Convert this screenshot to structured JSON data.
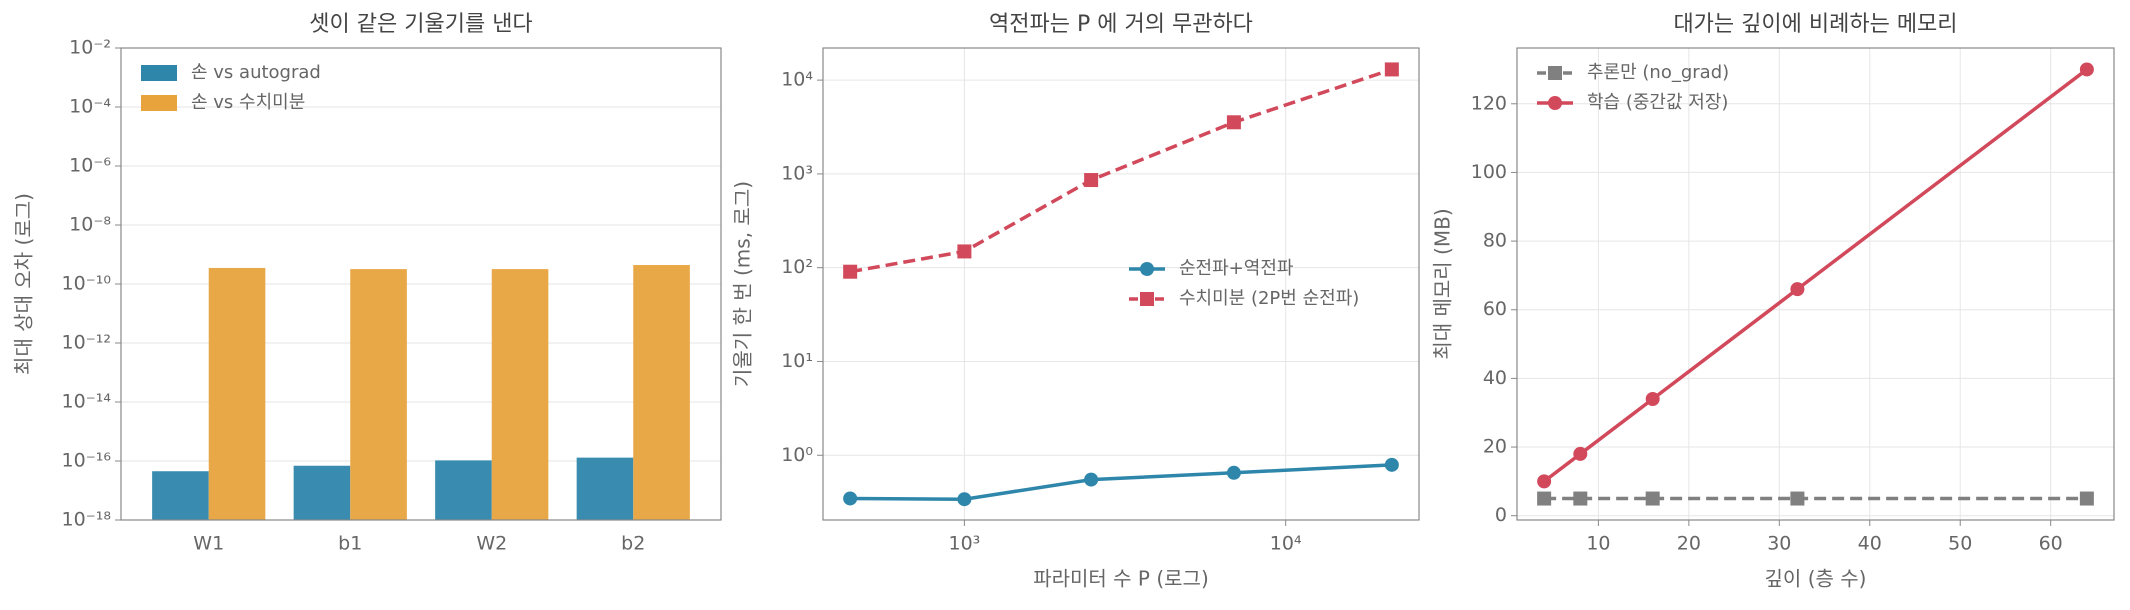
{
  "chart_data": [
    {
      "type": "bar",
      "title": "셋이 같은 기울기를 낸다",
      "ylabel": "최대 상대 오차 (로그)",
      "categories": [
        "W1",
        "b1",
        "W2",
        "b2"
      ],
      "series": [
        {
          "name": "손 vs autograd",
          "color": "#2e86ab",
          "values": [
            4.5e-17,
            6.9e-17,
            1.05e-16,
            1.3e-16
          ]
        },
        {
          "name": "손 vs 수치미분",
          "color": "#e8a33d",
          "values": [
            3.5e-10,
            3.2e-10,
            3.2e-10,
            4.4e-10
          ]
        }
      ],
      "yscale": "log",
      "ylim": [
        1e-18,
        0.01
      ],
      "yticks": [
        {
          "value": 1e-18,
          "label": "10⁻¹⁸"
        },
        {
          "value": 1e-16,
          "label": "10⁻¹⁶"
        },
        {
          "value": 1e-14,
          "label": "10⁻¹⁴"
        },
        {
          "value": 1e-12,
          "label": "10⁻¹²"
        },
        {
          "value": 1e-10,
          "label": "10⁻¹⁰"
        },
        {
          "value": 1e-08,
          "label": "10⁻⁸"
        },
        {
          "value": 1e-06,
          "label": "10⁻⁶"
        },
        {
          "value": 0.0001,
          "label": "10⁻⁴"
        },
        {
          "value": 0.01,
          "label": "10⁻²"
        }
      ],
      "grid": true,
      "legend": "upper left"
    },
    {
      "type": "line",
      "title": "역전파는 P 에 거의 무관하다",
      "xlabel": "파라미터 수 P (로그)",
      "ylabel": "기울기 한 번 (ms, 로그)",
      "x": [
        441,
        1000,
        2480,
        6900,
        21400
      ],
      "series": [
        {
          "name": "순전파+역전파",
          "color": "#2e86ab",
          "linestyle": "solid",
          "marker": "circle",
          "values": [
            0.346,
            0.34,
            0.55,
            0.65,
            0.79
          ]
        },
        {
          "name": "수치미분 (2P번 순전파)",
          "color": "#d1495b",
          "linestyle": "dashed",
          "marker": "square",
          "values": [
            90.6,
            149,
            860,
            3550,
            13000
          ]
        }
      ],
      "xscale": "log",
      "yscale": "log",
      "xlim": [
        363,
        26000
      ],
      "ylim": [
        0.204,
        22000
      ],
      "xticks": [
        {
          "value": 1000,
          "label": "10³"
        },
        {
          "value": 10000,
          "label": "10⁴"
        }
      ],
      "yticks": [
        {
          "value": 1,
          "label": "10⁰"
        },
        {
          "value": 10,
          "label": "10¹"
        },
        {
          "value": 100,
          "label": "10²"
        },
        {
          "value": 1000,
          "label": "10³"
        },
        {
          "value": 10000,
          "label": "10⁴"
        }
      ],
      "grid": true,
      "legend": "center right"
    },
    {
      "type": "line",
      "title": "대가는 깊이에 비례하는 메모리",
      "xlabel": "깊이 (층 수)",
      "ylabel": "최대 메모리 (MB)",
      "x": [
        4,
        8,
        16,
        32,
        64
      ],
      "series": [
        {
          "name": "추론만 (no_grad)",
          "color": "#808080",
          "linestyle": "dashed",
          "marker": "square",
          "values": [
            5,
            5,
            5,
            5,
            5
          ]
        },
        {
          "name": "학습 (중간값 저장)",
          "color": "#d1495b",
          "linestyle": "solid",
          "marker": "circle",
          "values": [
            10,
            18,
            34,
            66,
            130
          ]
        }
      ],
      "xlim": [
        1,
        67
      ],
      "ylim": [
        -1.25,
        136.25
      ],
      "xticks": [
        10,
        20,
        30,
        40,
        50,
        60
      ],
      "yticks": [
        0,
        20,
        40,
        60,
        80,
        100,
        120
      ],
      "grid": true,
      "legend": "upper left"
    }
  ]
}
